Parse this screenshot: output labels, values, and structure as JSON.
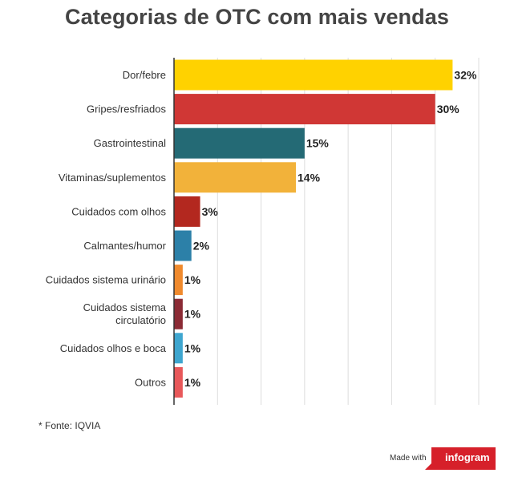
{
  "chart_data": {
    "type": "bar",
    "orientation": "horizontal",
    "title": "Categorias de OTC com mais vendas",
    "categories": [
      "Dor/febre",
      "Gripes/resfriados",
      "Gastrointestinal",
      "Vitaminas/suplementos",
      "Cuidados com olhos",
      "Calmantes/humor",
      "Cuidados sistema urinário",
      "Cuidados sistema circulatório",
      "Cuidados olhos e boca",
      "Outros"
    ],
    "category_lines": [
      [
        "Dor/febre"
      ],
      [
        "Gripes/resfriados"
      ],
      [
        "Gastrointestinal"
      ],
      [
        "Vitaminas/suplementos"
      ],
      [
        "Cuidados com olhos"
      ],
      [
        "Calmantes/humor"
      ],
      [
        "Cuidados sistema urinário"
      ],
      [
        "Cuidados sistema",
        "circulatório"
      ],
      [
        "Cuidados olhos e boca"
      ],
      [
        "Outros"
      ]
    ],
    "values": [
      32,
      30,
      15,
      14,
      3,
      2,
      1,
      1,
      1,
      1
    ],
    "value_labels": [
      "32%",
      "30%",
      "15%",
      "14%",
      "3%",
      "2%",
      "1%",
      "1%",
      "1%",
      "1%"
    ],
    "colors": [
      "#FFD200",
      "#D03735",
      "#246A75",
      "#F2B23A",
      "#B3281F",
      "#2C80A8",
      "#F08A2D",
      "#8B2B35",
      "#3EA6CF",
      "#E8585A"
    ],
    "xlim": [
      0,
      35
    ],
    "grid": true,
    "legend": "none"
  },
  "footer": {
    "source": "* Fonte: IQVIA",
    "made_with": "Made with",
    "brand": "infogram",
    "brand_color": "#D6202A"
  }
}
